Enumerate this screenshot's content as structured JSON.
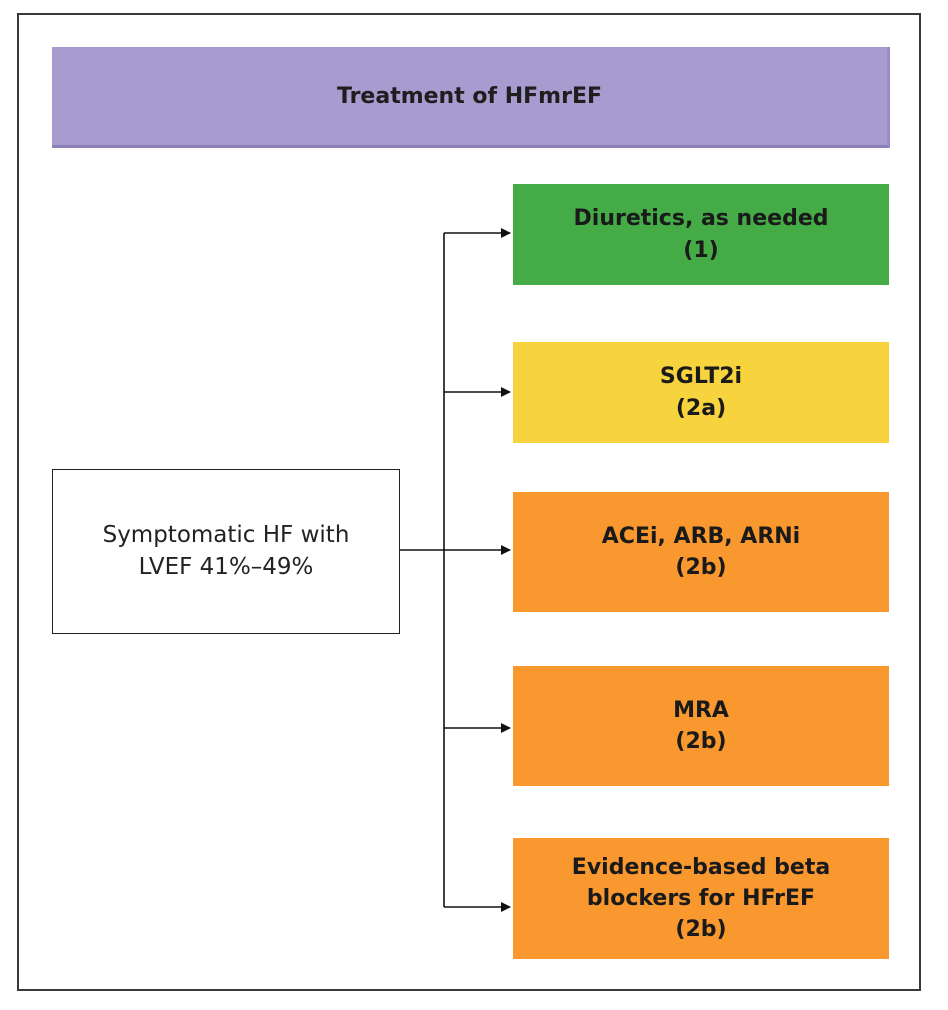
{
  "title": "Treatment of HFmrEF",
  "source": {
    "line1": "Symptomatic HF with",
    "line2": "LVEF 41%–49%"
  },
  "treatments": [
    {
      "lines": [
        "Diuretics, as needed",
        "(1)"
      ],
      "color": "#45ab46"
    },
    {
      "lines": [
        "SGLT2i",
        "(2a)"
      ],
      "color": "#f7d33d"
    },
    {
      "lines": [
        "ACEi, ARB, ARNi",
        "(2b)"
      ],
      "color": "#f8982e"
    },
    {
      "lines": [
        "MRA",
        "(2b)"
      ],
      "color": "#f8982e"
    },
    {
      "lines": [
        "Evidence-based beta",
        "blockers for HFrEF",
        "(2b)"
      ],
      "color": "#f8982e"
    }
  ]
}
